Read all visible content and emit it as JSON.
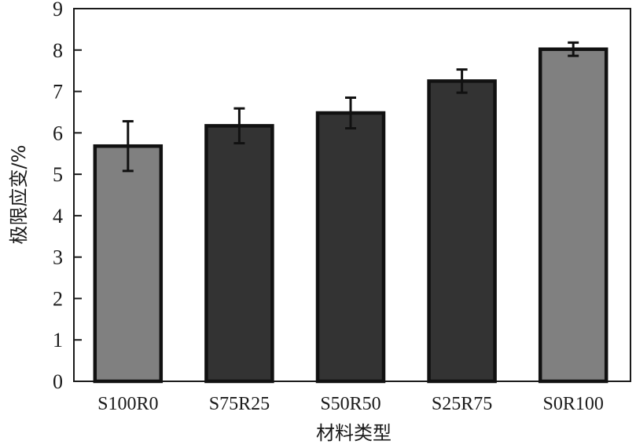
{
  "chart_data": {
    "type": "bar",
    "title": "",
    "xlabel": "材料类型",
    "ylabel": "极限应变/%",
    "ylim": [
      0,
      9
    ],
    "yticks": [
      0,
      1,
      2,
      3,
      4,
      5,
      6,
      7,
      8,
      9
    ],
    "grid": false,
    "legend": "none",
    "categories": [
      "S100R0",
      "S75R25",
      "S50R50",
      "S25R75",
      "S0R100"
    ],
    "values": [
      5.68,
      6.17,
      6.48,
      7.25,
      8.02
    ],
    "errors": [
      0.6,
      0.42,
      0.37,
      0.28,
      0.16
    ],
    "bar_colors": [
      "#808080",
      "#333333",
      "#333333",
      "#333333",
      "#808080"
    ],
    "edge_color": "#111111"
  }
}
